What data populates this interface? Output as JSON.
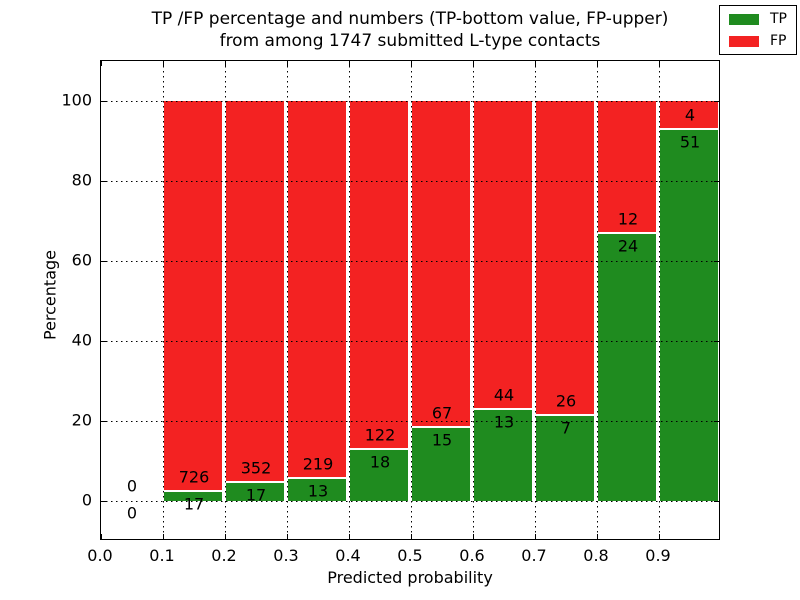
{
  "title": {
    "line1": "TP /FP percentage and numbers (TP-bottom value, FP-upper)",
    "line2": "from among 1747 submitted L-type contacts"
  },
  "axes": {
    "xlabel": "Predicted probability",
    "ylabel": "Percentage",
    "x_ticklabels": [
      "0.0",
      "0.1",
      "0.2",
      "0.3",
      "0.4",
      "0.5",
      "0.6",
      "0.7",
      "0.8",
      "0.9"
    ],
    "y_ticklabels": [
      "0",
      "20",
      "40",
      "60",
      "80",
      "100"
    ],
    "y_tickvalues": [
      0,
      20,
      40,
      60,
      80,
      100
    ],
    "x_tickvalues": [
      0.0,
      0.1,
      0.2,
      0.3,
      0.4,
      0.5,
      0.6,
      0.7,
      0.8,
      0.9
    ]
  },
  "legend": {
    "items": [
      {
        "label": "TP",
        "color": "#1f8b1f"
      },
      {
        "label": "FP",
        "color": "#f32222"
      }
    ]
  },
  "colors": {
    "tp": "#1f8b1f",
    "fp": "#f32222",
    "grid": "#000000",
    "background": "#ffffff"
  },
  "chart_data": {
    "type": "bar",
    "stacked": true,
    "normalized_to_percent": true,
    "title": "TP /FP percentage and numbers (TP-bottom value, FP-upper) from among 1747 submitted L-type contacts",
    "xlabel": "Predicted probability",
    "ylabel": "Percentage",
    "bin_edges": [
      0.0,
      0.1,
      0.2,
      0.3,
      0.4,
      0.5,
      0.6,
      0.7,
      0.8,
      0.9,
      1.0
    ],
    "series": [
      {
        "name": "TP",
        "color": "#1f8b1f",
        "counts": [
          0,
          17,
          17,
          13,
          18,
          15,
          13,
          7,
          24,
          51
        ]
      },
      {
        "name": "FP",
        "color": "#f32222",
        "counts": [
          0,
          726,
          352,
          219,
          122,
          67,
          44,
          26,
          12,
          4
        ]
      }
    ],
    "total_contacts": 1747,
    "xlim": [
      0.0,
      1.0
    ],
    "ylim": [
      -10,
      110
    ],
    "grid": true,
    "grid_style": "dotted",
    "legend_position": "upper right"
  }
}
